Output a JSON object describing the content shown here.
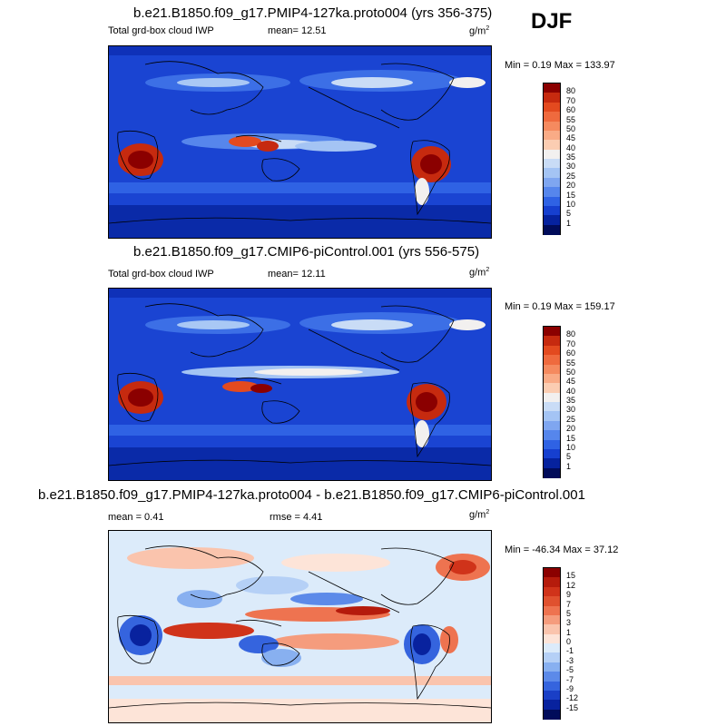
{
  "season_label": "DJF",
  "panels": [
    {
      "id": "top",
      "title": "b.e21.B1850.f09_g17.PMIP4-127ka.proto004 (yrs 356-375)",
      "left_label": "Total grd-box cloud IWP",
      "mean_label": "mean=  12.51",
      "units": "g/m",
      "units_exp": "2",
      "minmax": "Min =   0.19 Max = 133.97",
      "levels": [
        "80",
        "70",
        "60",
        "55",
        "50",
        "45",
        "40",
        "35",
        "30",
        "25",
        "20",
        "15",
        "10",
        "5",
        "1"
      ],
      "colors": [
        "#8b0000",
        "#c62a0f",
        "#e34a1f",
        "#ef6a3e",
        "#f58a5f",
        "#f9ab86",
        "#fbcdb2",
        "#f2f0ef",
        "#c9dcf6",
        "#a4c4f4",
        "#7fa6f0",
        "#5686ec",
        "#2f62e4",
        "#163fcf",
        "#06229e",
        "#010c5a"
      ]
    },
    {
      "id": "mid",
      "title": "b.e21.B1850.f09_g17.CMIP6-piControl.001 (yrs 556-575)",
      "left_label": "Total grd-box cloud IWP",
      "mean_label": "mean=  12.11",
      "units": "g/m",
      "units_exp": "2",
      "minmax": "Min =   0.19 Max = 159.17",
      "levels": [
        "80",
        "70",
        "60",
        "55",
        "50",
        "45",
        "40",
        "35",
        "30",
        "25",
        "20",
        "15",
        "10",
        "5",
        "1"
      ],
      "colors": [
        "#8b0000",
        "#c62a0f",
        "#e34a1f",
        "#ef6a3e",
        "#f58a5f",
        "#f9ab86",
        "#fbcdb2",
        "#f2f0ef",
        "#c9dcf6",
        "#a4c4f4",
        "#7fa6f0",
        "#5686ec",
        "#2f62e4",
        "#163fcf",
        "#06229e",
        "#010c5a"
      ]
    },
    {
      "id": "diff",
      "title": "b.e21.B1850.f09_g17.PMIP4-127ka.proto004 - b.e21.B1850.f09_g17.CMIP6-piControl.001",
      "left_label": "mean =   0.41",
      "mean_label": "rmse =   4.41",
      "units": "g/m",
      "units_exp": "2",
      "minmax": "Min = -46.34 Max =  37.12",
      "levels": [
        "15",
        "12",
        "9",
        "7",
        "5",
        "3",
        "1",
        "0",
        "-1",
        "-3",
        "-5",
        "-7",
        "-9",
        "-12",
        "-15"
      ],
      "colors": [
        "#8b0000",
        "#b51b0c",
        "#d0331a",
        "#e0512f",
        "#ee7350",
        "#f59c7d",
        "#fac4ad",
        "#fde4d8",
        "#dcebfa",
        "#b5d0f6",
        "#88b0f0",
        "#5c8ae9",
        "#3564de",
        "#1a3fc6",
        "#08229e",
        "#010c5a"
      ]
    }
  ]
}
